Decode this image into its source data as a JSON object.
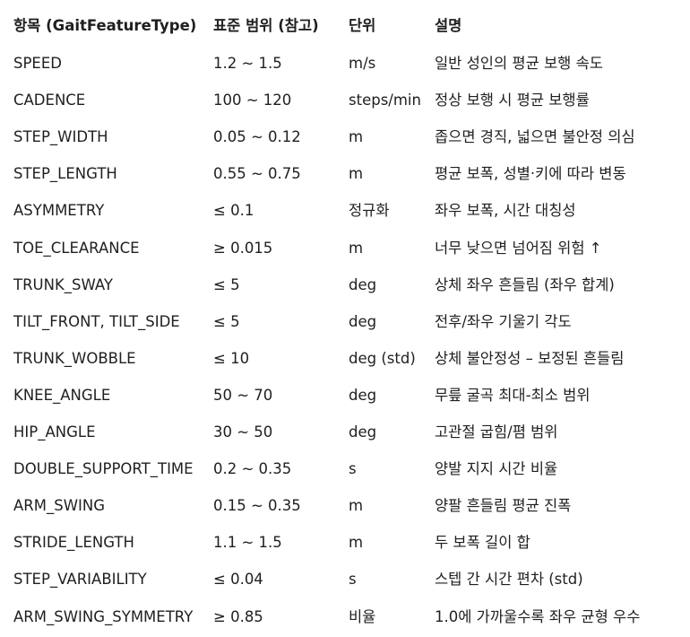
{
  "headers": [
    "항목 (GaitFeatureType)",
    "표준 범위 (참고)",
    "단위",
    "설명"
  ],
  "rows": [
    [
      "SPEED",
      "1.2 ~ 1.5",
      "m/s",
      "일반 성인의 평균 보행 속도"
    ],
    [
      "CADENCE",
      "100 ~ 120",
      "steps/min",
      "정상 보행 시 평균 보행률"
    ],
    [
      "STEP_WIDTH",
      "0.05 ~ 0.12",
      "m",
      "좁으면 경직, 넓으면 불안정 의심"
    ],
    [
      "STEP_LENGTH",
      "0.55 ~ 0.75",
      "m",
      "평균 보폭, 성별·키에 따라 변동"
    ],
    [
      "ASYMMETRY",
      "≤ 0.1",
      "정규화",
      "좌우 보폭, 시간 대칭성"
    ],
    [
      "TOE_CLEARANCE",
      "≥ 0.015",
      "m",
      "너무 낮으면 넘어짐 위험 ↑"
    ],
    [
      "TRUNK_SWAY",
      "≤ 5",
      "deg",
      "상체 좌우 흔들림 (좌우 합계)"
    ],
    [
      "TILT_FRONT, TILT_SIDE",
      "≤ 5",
      "deg",
      "전후/좌우 기울기 각도"
    ],
    [
      "TRUNK_WOBBLE",
      "≤ 10",
      "deg (std)",
      "상체 불안정성 – 보정된 흔들림"
    ],
    [
      "KNEE_ANGLE",
      "50 ~ 70",
      "deg",
      "무릎 굴곡 최대-최소 범위"
    ],
    [
      "HIP_ANGLE",
      "30 ~ 50",
      "deg",
      "고관절 굽힘/폄 범위"
    ],
    [
      "DOUBLE_SUPPORT_TIME",
      "0.2 ~ 0.35",
      "s",
      "양발 지지 시간 비율"
    ],
    [
      "ARM_SWING",
      "0.15 ~ 0.35",
      "m",
      "양팔 흔들림 평균 진폭"
    ],
    [
      "STRIDE_LENGTH",
      "1.1 ~ 1.5",
      "m",
      "두 보폭 길이 합"
    ],
    [
      "STEP_VARIABILITY",
      "≤ 0.04",
      "s",
      "스텝 간 시간 편차 (std)"
    ],
    [
      "ARM_SWING_SYMMETRY",
      "≥ 0.85",
      "비율",
      "1.0에 가까울수록 좌우 균형 우수"
    ]
  ]
}
